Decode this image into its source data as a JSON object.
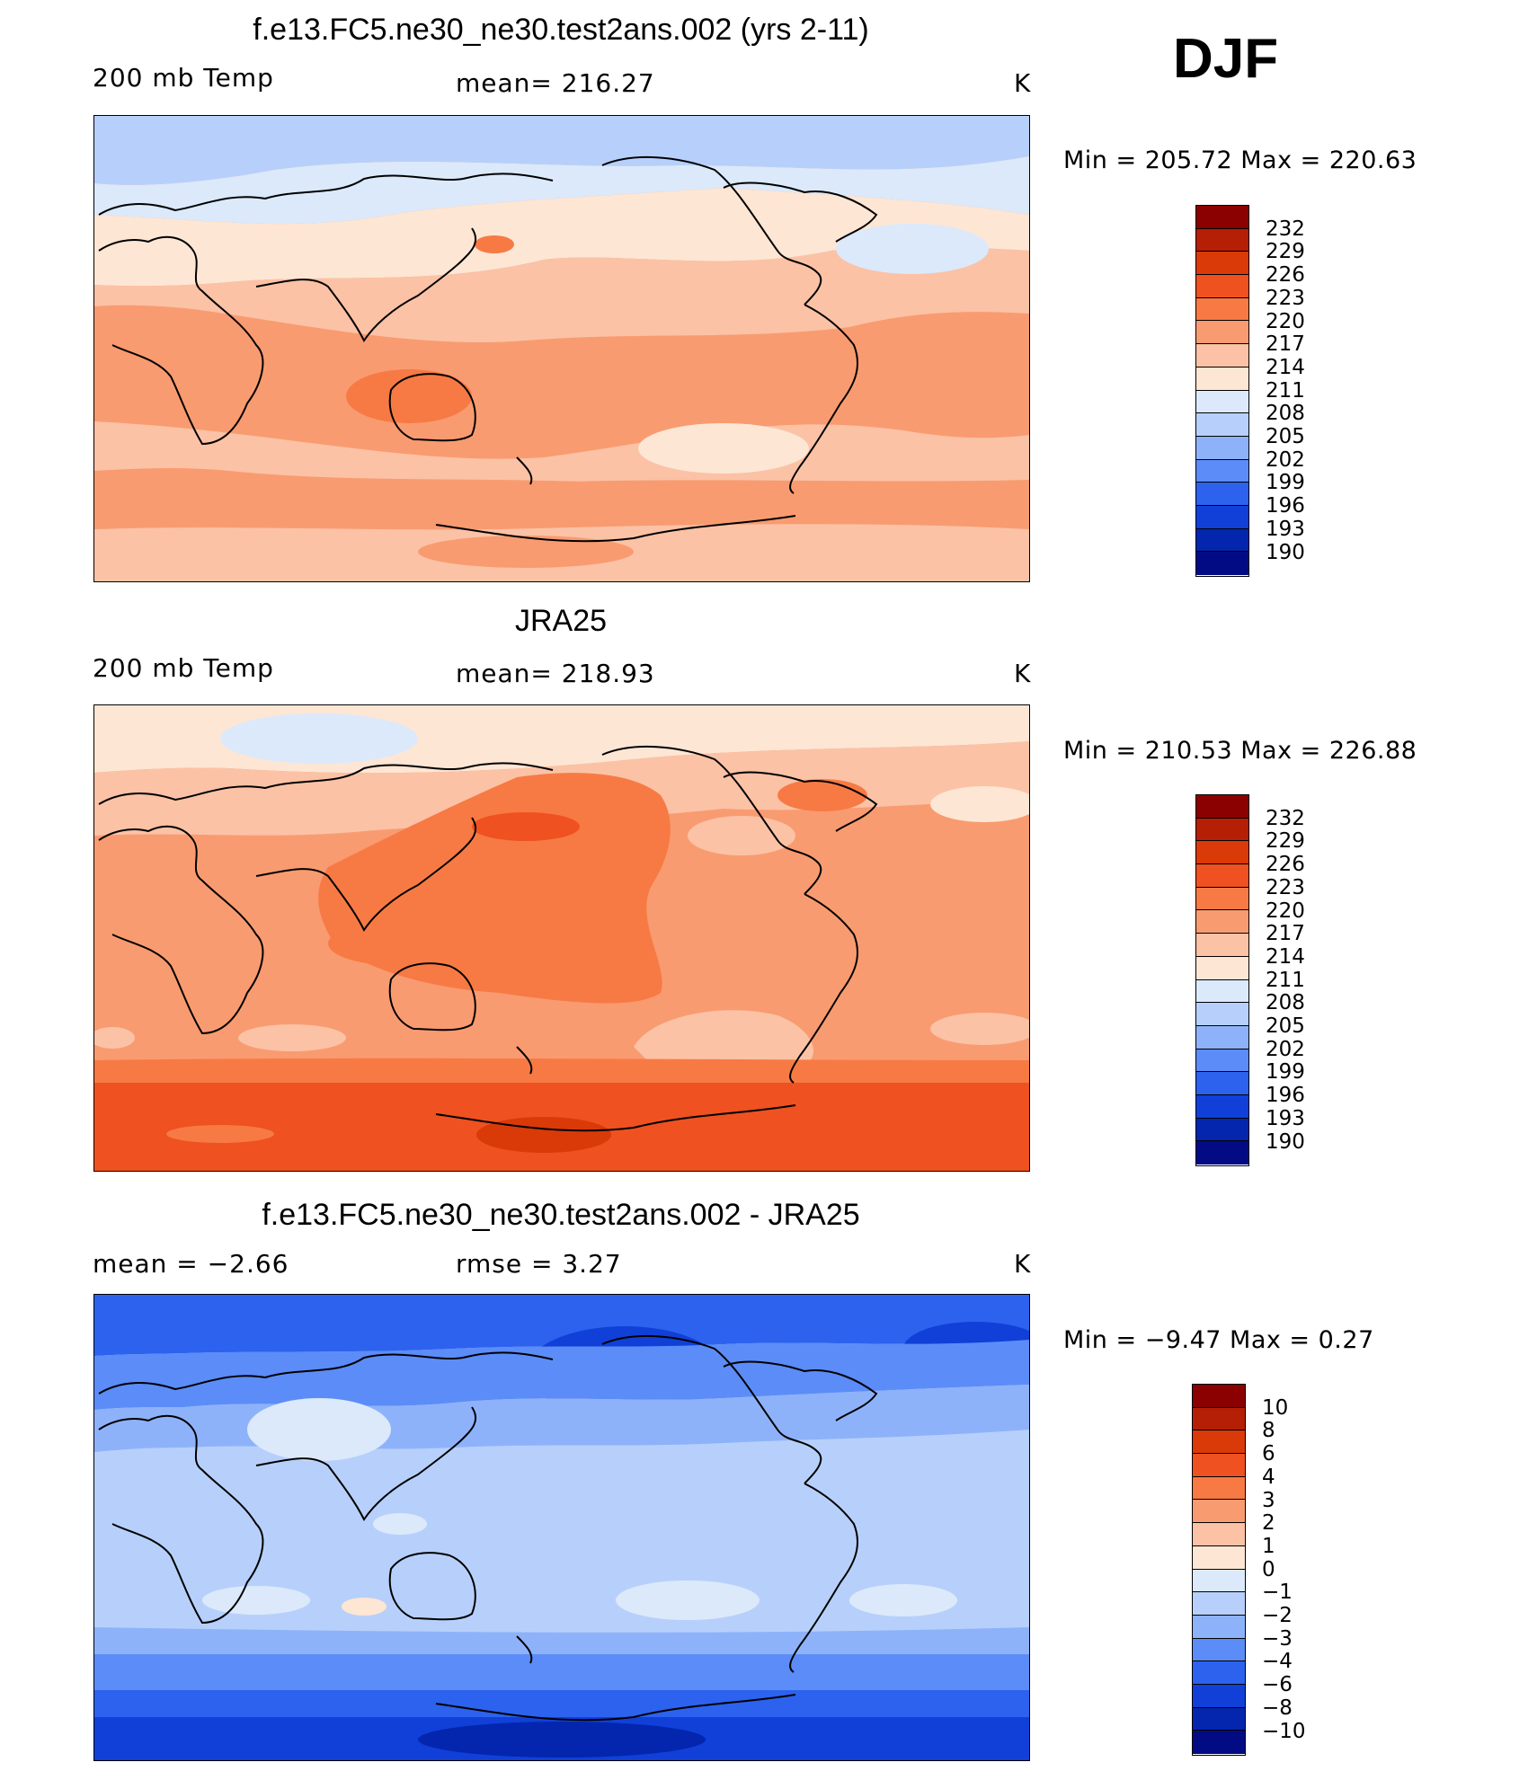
{
  "season": "DJF",
  "panels": [
    {
      "title": "f.e13.FC5.ne30_ne30.test2ans.002 (yrs 2-11)",
      "left_label": "200 mb Temp",
      "center_label": "mean=  216.27",
      "units": "K",
      "minmax": "Min  =  205.72  Max  =  220.63",
      "palette": "model"
    },
    {
      "title": "JRA25",
      "left_label": "200 mb Temp",
      "center_label": "mean=  218.93",
      "units": "K",
      "minmax": "Min  =  210.53  Max  =  226.88",
      "palette": "obs"
    },
    {
      "title": "f.e13.FC5.ne30_ne30.test2ans.002 - JRA25",
      "left_label": "mean =    −2.66",
      "center_label": "rmse =     3.27",
      "units": "K",
      "minmax": "Min  =    −9.47  Max  =     0.27",
      "palette": "diff"
    }
  ],
  "legend_abs": {
    "labels": [
      "232",
      "229",
      "226",
      "223",
      "220",
      "217",
      "214",
      "211",
      "208",
      "205",
      "202",
      "199",
      "196",
      "193",
      "190"
    ],
    "colors": [
      "#8b0000",
      "#b51f05",
      "#d93a08",
      "#ef5120",
      "#f77a44",
      "#f99b70",
      "#fbc2a6",
      "#fde6d4",
      "#dbe9fb",
      "#b7d0fb",
      "#8eb2fa",
      "#5c8cf7",
      "#2c62ee",
      "#1040d8",
      "#0426ae",
      "#030b84"
    ]
  },
  "legend_diff": {
    "labels": [
      "10",
      "8",
      "6",
      "4",
      "3",
      "2",
      "1",
      "0",
      "−1",
      "−2",
      "−3",
      "−4",
      "−6",
      "−8",
      "−10"
    ],
    "colors": [
      "#8b0000",
      "#b51f05",
      "#d93a08",
      "#ef5120",
      "#f77a44",
      "#f99b70",
      "#fbc2a6",
      "#fde6d4",
      "#dbe9fb",
      "#b7d0fb",
      "#8eb2fa",
      "#5c8cf7",
      "#2c62ee",
      "#1040d8",
      "#0426ae",
      "#030b84"
    ]
  }
}
